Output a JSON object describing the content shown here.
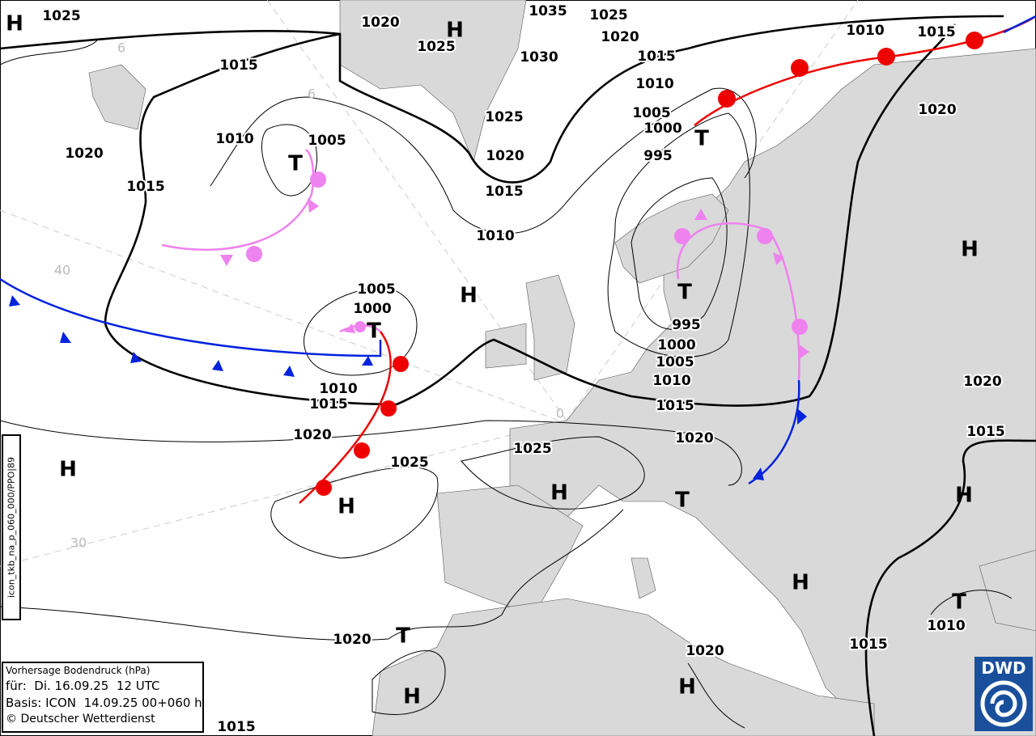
{
  "info_box": {
    "title": "Vorhersage Bodendruck (hPa)",
    "valid": "für:  Di. 16.09.25  12 UTC",
    "basis": "Basis: ICON  14.09.25 00+060 h",
    "copyright": "© Deutscher Wetterdienst"
  },
  "side_label": "icon_tkb_na_p_060_000/PPO|89",
  "logo": "DWD",
  "grid_labels": [
    6,
    6,
    40,
    0,
    30
  ],
  "isobar_labels": [
    1025,
    1020,
    1035,
    1025,
    1020,
    1025,
    1030,
    1015,
    1015,
    1010,
    1010,
    1015,
    1005,
    1000,
    1025,
    1020,
    1010,
    1005,
    995,
    1020,
    1020,
    1015,
    1015,
    1010,
    1005,
    1000,
    995,
    1000,
    1005,
    1010,
    1010,
    1020,
    1015,
    1015,
    1020,
    1020,
    1015,
    1025,
    1025,
    1010,
    1020,
    1015,
    1020,
    1015
  ],
  "pressure_centers": [
    "H",
    "H",
    "T",
    "T",
    "H",
    "H",
    "T",
    "T",
    "H",
    "H",
    "H",
    "T",
    "H",
    "H",
    "T",
    "T",
    "H",
    "H"
  ]
}
